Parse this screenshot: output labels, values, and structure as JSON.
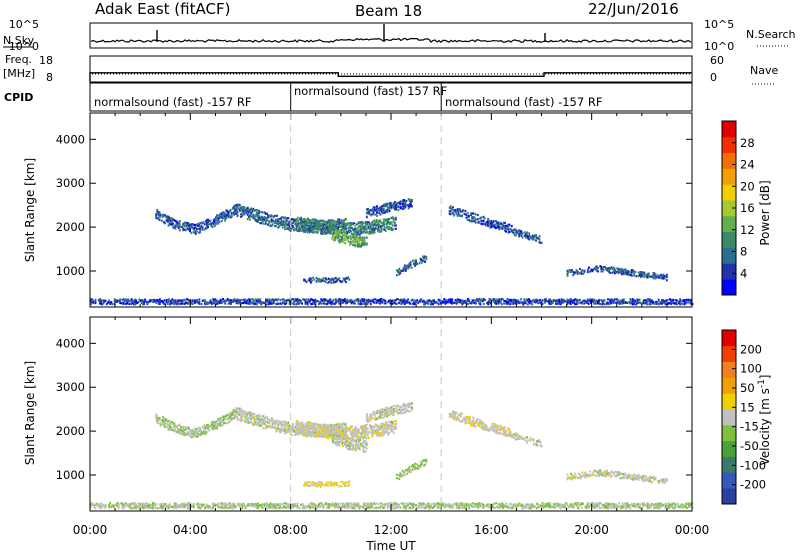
{
  "header": {
    "station": "Adak East (fitACF)",
    "beam": "Beam 18",
    "date": "22/Jun/2016"
  },
  "colors": {
    "axis": "#000000",
    "divider": "#c8c8c8",
    "power_scale": [
      "#0000ff",
      "#2233aa",
      "#2d6e8e",
      "#3a8a6a",
      "#60b050",
      "#a8c830",
      "#f0d000",
      "#f0a000",
      "#f07000",
      "#f03000",
      "#e00000"
    ],
    "velocity_scale": [
      "#2b3fa0",
      "#3658b8",
      "#3a7a6a",
      "#4aa03a",
      "#80c040",
      "#c0c0c0",
      "#f0d000",
      "#f0a000",
      "#f08020",
      "#f04000",
      "#e00000"
    ]
  },
  "panels": {
    "nsky": {
      "label": "N.Sky",
      "right_label": "N.Search",
      "left_ticks": [
        "10^5",
        "10^0"
      ],
      "right_ticks": [
        "10^5",
        "10^0"
      ]
    },
    "freq": {
      "label": "Freq.",
      "unit": "[MHz]",
      "right_label": "Nave",
      "left_ticks": [
        "18",
        "8"
      ],
      "right_ticks": [
        "60",
        "0"
      ],
      "freq_series": {
        "x_hours": [
          0.0,
          0.0,
          9.9,
          9.9,
          18.1,
          18.1,
          24.0
        ],
        "y_mhz": [
          8.0,
          12.3,
          12.3,
          10.5,
          10.5,
          12.3,
          12.3
        ]
      }
    },
    "cpid": {
      "label": "CPID",
      "segments": [
        {
          "start": 0.0,
          "end": 8.0,
          "text": "normalsound (fast) -157 RF"
        },
        {
          "start": 8.0,
          "end": 14.0,
          "text": "normalsound (fast) 157 RF"
        },
        {
          "start": 14.0,
          "end": 24.0,
          "text": "normalsound (fast) -157 RF"
        }
      ]
    }
  },
  "chart_data": [
    {
      "type": "heatmap",
      "ylabel": "Slant Range [km]",
      "ylim": [
        180,
        4600
      ],
      "yticks": [
        "1000",
        "2000",
        "3000",
        "4000"
      ],
      "colorbar": {
        "label": "Power [dB]",
        "ticks": [
          "4",
          "8",
          "12",
          "16",
          "20",
          "24",
          "28"
        ],
        "range": [
          0,
          32
        ]
      },
      "echoes": [
        {
          "start": 2.6,
          "end": 5.8,
          "center": [
            2300,
            2050,
            1950,
            2150,
            2400
          ],
          "thickness": 220,
          "value": 6
        },
        {
          "start": 5.8,
          "end": 10.2,
          "center": [
            2400,
            2200,
            2050,
            2000,
            2050
          ],
          "thickness": 280,
          "value": 7
        },
        {
          "start": 8.2,
          "end": 12.2,
          "center": [
            2100,
            2000,
            1950,
            2000,
            2100
          ],
          "thickness": 300,
          "value": 9
        },
        {
          "start": 9.6,
          "end": 11.0,
          "center": [
            1850,
            1700,
            1650
          ],
          "thickness": 260,
          "value": 12
        },
        {
          "start": 11.0,
          "end": 12.8,
          "center": [
            2300,
            2450,
            2550
          ],
          "thickness": 220,
          "value": 6
        },
        {
          "start": 8.5,
          "end": 10.3,
          "center": [
            800,
            780,
            800
          ],
          "thickness": 110,
          "value": 6
        },
        {
          "start": 12.2,
          "end": 13.4,
          "center": [
            950,
            1150,
            1300
          ],
          "thickness": 150,
          "value": 7
        },
        {
          "start": 14.3,
          "end": 16.8,
          "center": [
            2400,
            2150,
            1950
          ],
          "thickness": 200,
          "value": 6
        },
        {
          "start": 16.8,
          "end": 18.0,
          "center": [
            1900,
            1700
          ],
          "thickness": 150,
          "value": 6
        },
        {
          "start": 19.0,
          "end": 23.0,
          "center": [
            950,
            1050,
            950,
            850
          ],
          "thickness": 130,
          "value": 6
        },
        {
          "start": 0.0,
          "end": 24.0,
          "center": [
            300
          ],
          "thickness": 120,
          "value": 5
        }
      ]
    },
    {
      "type": "heatmap",
      "ylabel": "Slant Range [km]",
      "ylim": [
        180,
        4600
      ],
      "yticks": [
        "1000",
        "2000",
        "3000",
        "4000"
      ],
      "colorbar": {
        "label": "Velocity [m s^-1]",
        "ticks": [
          "200",
          "100",
          "50",
          "15",
          "-15",
          "-50",
          "-100",
          "-200"
        ],
        "range": [
          -250,
          250
        ]
      },
      "echoes": [
        {
          "start": 2.6,
          "end": 5.8,
          "center": [
            2300,
            2050,
            1950,
            2150,
            2400
          ],
          "thickness": 220,
          "value": -20
        },
        {
          "start": 5.8,
          "end": 10.2,
          "center": [
            2400,
            2200,
            2050,
            2000,
            2050
          ],
          "thickness": 280,
          "value": 0
        },
        {
          "start": 8.2,
          "end": 12.2,
          "center": [
            2100,
            2000,
            1950,
            2000,
            2100
          ],
          "thickness": 300,
          "value": 5
        },
        {
          "start": 9.6,
          "end": 11.0,
          "center": [
            1850,
            1700,
            1650
          ],
          "thickness": 260,
          "value": -5
        },
        {
          "start": 11.0,
          "end": 12.8,
          "center": [
            2300,
            2450,
            2550
          ],
          "thickness": 220,
          "value": 0
        },
        {
          "start": 8.5,
          "end": 10.3,
          "center": [
            800,
            780,
            800
          ],
          "thickness": 110,
          "value": 35
        },
        {
          "start": 12.2,
          "end": 13.4,
          "center": [
            950,
            1150,
            1300
          ],
          "thickness": 150,
          "value": -40
        },
        {
          "start": 14.3,
          "end": 16.8,
          "center": [
            2400,
            2150,
            1950
          ],
          "thickness": 200,
          "value": 10
        },
        {
          "start": 16.8,
          "end": 18.0,
          "center": [
            1900,
            1700
          ],
          "thickness": 150,
          "value": 0
        },
        {
          "start": 19.0,
          "end": 23.0,
          "center": [
            950,
            1050,
            950,
            850
          ],
          "thickness": 130,
          "value": 0
        },
        {
          "start": 0.0,
          "end": 24.0,
          "center": [
            300
          ],
          "thickness": 120,
          "value": -20
        }
      ]
    }
  ],
  "x_axis": {
    "label": "Time UT",
    "range": [
      0,
      24
    ],
    "ticks": [
      "00:00",
      "04:00",
      "08:00",
      "12:00",
      "16:00",
      "20:00",
      "00:00"
    ],
    "cpid_dividers": [
      8.0,
      14.0
    ]
  }
}
